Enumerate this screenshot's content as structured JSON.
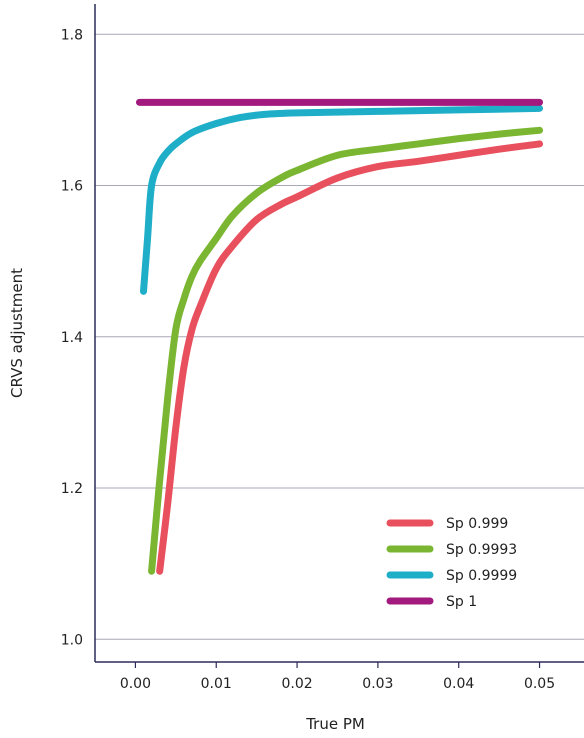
{
  "chart_data": {
    "type": "line",
    "title": "",
    "xlabel": "True PM",
    "ylabel": "CRVS adjustment",
    "xlim": [
      -0.005,
      0.0555
    ],
    "ylim": [
      0.97,
      1.84
    ],
    "x_ticks": [
      0.0,
      0.01,
      0.02,
      0.03,
      0.04,
      0.05
    ],
    "x_tick_labels": [
      "0.00",
      "0.01",
      "0.02",
      "0.03",
      "0.04",
      "0.05"
    ],
    "y_ticks": [
      1.0,
      1.2,
      1.4,
      1.6,
      1.8
    ],
    "y_tick_labels": [
      "1.0",
      "1.2",
      "1.4",
      "1.6",
      "1.8"
    ],
    "grid": "horizontal",
    "legend_position": "bottom-right",
    "series": [
      {
        "name": "Sp 0.999",
        "color": "#e8505e",
        "points": [
          [
            0.003,
            1.09
          ],
          [
            0.004,
            1.18
          ],
          [
            0.005,
            1.28
          ],
          [
            0.006,
            1.36
          ],
          [
            0.007,
            1.41
          ],
          [
            0.008,
            1.44
          ],
          [
            0.01,
            1.49
          ],
          [
            0.012,
            1.52
          ],
          [
            0.015,
            1.555
          ],
          [
            0.018,
            1.575
          ],
          [
            0.02,
            1.585
          ],
          [
            0.025,
            1.61
          ],
          [
            0.03,
            1.625
          ],
          [
            0.035,
            1.632
          ],
          [
            0.04,
            1.64
          ],
          [
            0.045,
            1.648
          ],
          [
            0.05,
            1.655
          ]
        ]
      },
      {
        "name": "Sp 0.9993",
        "color": "#7ab632",
        "points": [
          [
            0.002,
            1.09
          ],
          [
            0.003,
            1.21
          ],
          [
            0.004,
            1.32
          ],
          [
            0.005,
            1.41
          ],
          [
            0.006,
            1.45
          ],
          [
            0.007,
            1.48
          ],
          [
            0.008,
            1.5
          ],
          [
            0.01,
            1.53
          ],
          [
            0.012,
            1.56
          ],
          [
            0.015,
            1.59
          ],
          [
            0.018,
            1.61
          ],
          [
            0.02,
            1.62
          ],
          [
            0.025,
            1.64
          ],
          [
            0.03,
            1.648
          ],
          [
            0.035,
            1.655
          ],
          [
            0.04,
            1.662
          ],
          [
            0.045,
            1.668
          ],
          [
            0.05,
            1.673
          ]
        ]
      },
      {
        "name": "Sp 0.9999",
        "color": "#1faec8",
        "points": [
          [
            0.001,
            1.46
          ],
          [
            0.0015,
            1.53
          ],
          [
            0.002,
            1.6
          ],
          [
            0.003,
            1.63
          ],
          [
            0.004,
            1.645
          ],
          [
            0.005,
            1.655
          ],
          [
            0.007,
            1.67
          ],
          [
            0.01,
            1.682
          ],
          [
            0.013,
            1.69
          ],
          [
            0.016,
            1.694
          ],
          [
            0.02,
            1.696
          ],
          [
            0.03,
            1.698
          ],
          [
            0.04,
            1.7
          ],
          [
            0.05,
            1.702
          ]
        ]
      },
      {
        "name": "Sp 1",
        "color": "#a31a7e",
        "points": [
          [
            0.0005,
            1.71
          ],
          [
            0.05,
            1.71
          ]
        ]
      }
    ]
  }
}
